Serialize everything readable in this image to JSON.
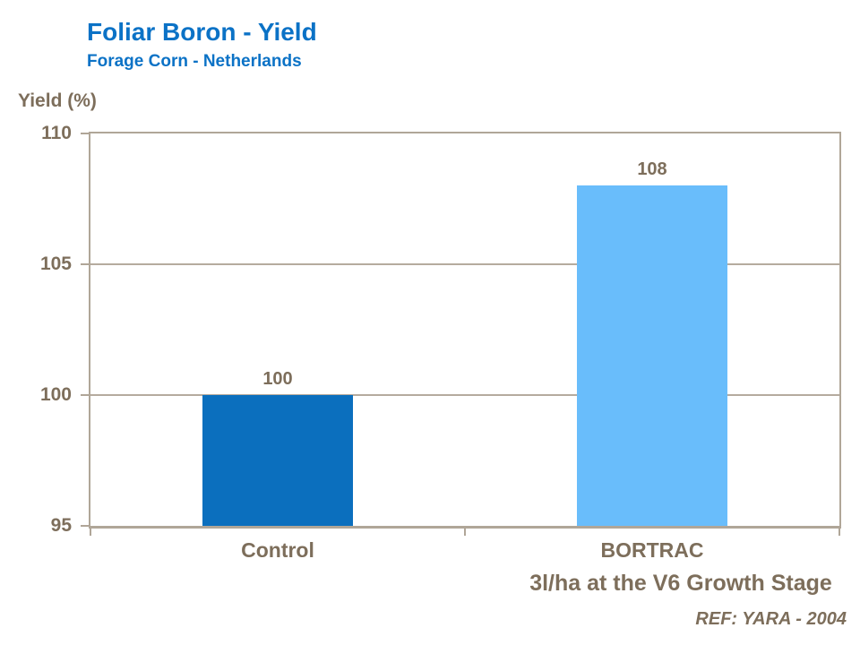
{
  "colors": {
    "title_blue": "#0B72C6",
    "text_brown": "#7D6E5B",
    "axis_line": "#B0A698",
    "gridline": "#B5AB9E",
    "bar_control": "#0B6FBE",
    "bar_bortrac": "#69BDFB"
  },
  "chart_data": {
    "type": "bar",
    "title": "Foliar Boron - Yield",
    "subtitle": "Forage Corn - Netherlands",
    "ylabel": "Yield (%)",
    "categories": [
      "Control",
      "BORTRAC"
    ],
    "category_sublabels": [
      "",
      "3l/ha at the V6 Growth Stage"
    ],
    "values": [
      100,
      108
    ],
    "value_labels": [
      "100",
      "108"
    ],
    "bar_colors": [
      "#0B6FBE",
      "#69BDFB"
    ],
    "ylim": [
      95,
      110
    ],
    "yticks": [
      95,
      100,
      105,
      110
    ],
    "grid": true,
    "legend": "none",
    "footnote": "REF: YARA - 2004"
  }
}
